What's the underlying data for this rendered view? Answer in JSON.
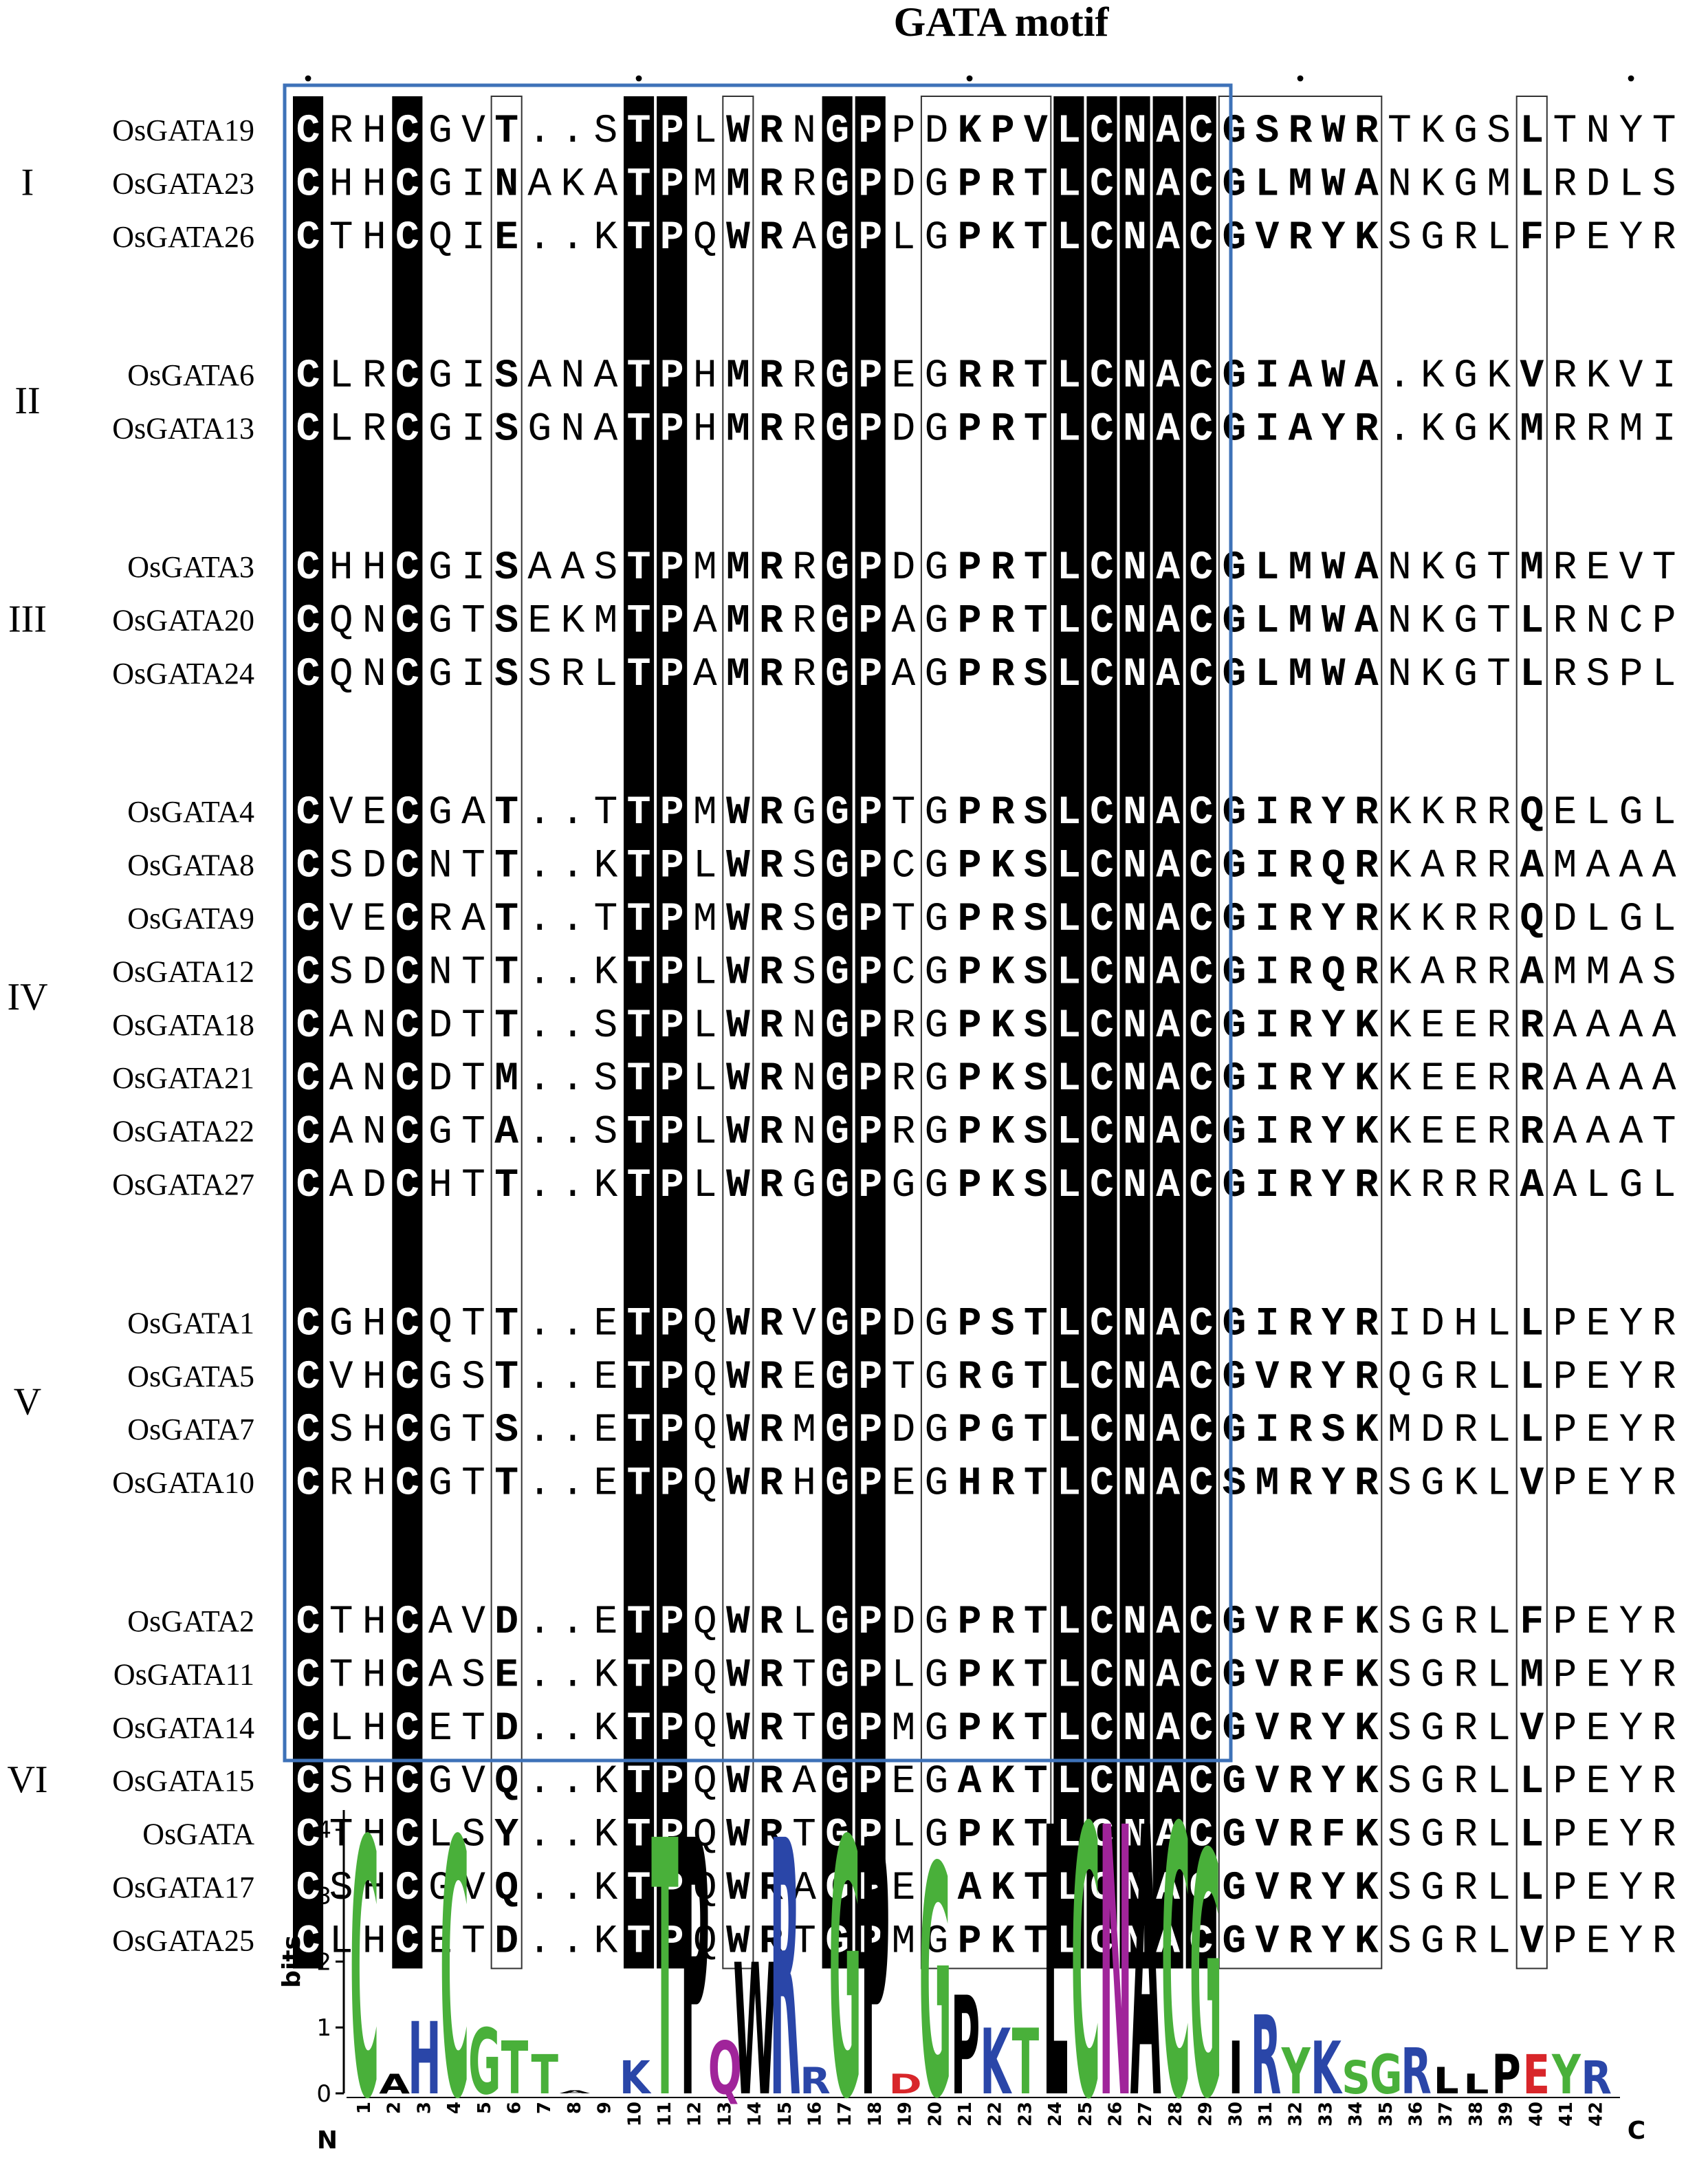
{
  "title": "GATA motif",
  "groups": [
    {
      "label": "I",
      "rows": [
        {
          "name": "OsGATA19",
          "sequence": "CRHCGVT..STPLWRNGPPDKPVLCNACGSRWRTKGSLTNYT"
        },
        {
          "name": "OsGATA23",
          "sequence": "CHHCGINAKATPMMRRGPDGPRTLCNACGLMWANKGMLRDLS"
        },
        {
          "name": "OsGATA26",
          "sequence": "CTHCQIE..KTPQWRAGPLGPKTLCNACGVRYKSGRLFPEYR"
        }
      ]
    },
    {
      "label": "II",
      "rows": [
        {
          "name": "OsGATA6",
          "sequence": "CLRCGISANATPHMRRGPEGRRTLCNACGIAWA.KGKVRKVI"
        },
        {
          "name": "OsGATA13",
          "sequence": "CLRCGISGNATPHMRRGPDGPRTLCNACGIAYR.KGKMRRMI"
        }
      ]
    },
    {
      "label": "III",
      "rows": [
        {
          "name": "OsGATA3",
          "sequence": "CHHCGISAASTPMMRRGPDGPRTLCNACGLMWANKGTMREVT"
        },
        {
          "name": "OsGATA20",
          "sequence": "CQNCGTSEKMTPAMRRGPAGPRTLCNACGLMWANKGTLRNCP"
        },
        {
          "name": "OsGATA24",
          "sequence": "CQNCGISSRLTPAMRRGPAGPRSLCNACGLMWANKGTLRSPL"
        }
      ]
    },
    {
      "label": "IV",
      "rows": [
        {
          "name": "OsGATA4",
          "sequence": "CVECGAT..TTPMWRGGPTGPRSLCNACGIRYRKKRRQELGL"
        },
        {
          "name": "OsGATA8",
          "sequence": "CSDCNTT..KTPLWRSGPCGPKSLCNACGIRQRKARRAMAAA"
        },
        {
          "name": "OsGATA9",
          "sequence": "CVECRAT..TTPMWRSGPTGPRSLCNACGIRYRKKRRQDLGL"
        },
        {
          "name": "OsGATA12",
          "sequence": "CSDCNTT..KTPLWRSGPCGPKSLCNACGIRQRKARRAMMAS"
        },
        {
          "name": "OsGATA18",
          "sequence": "CANCDTT..STPLWRNGPRGPKSLCNACGIRYKKEERRAAAA"
        },
        {
          "name": "OsGATA21",
          "sequence": "CANCDTM..STPLWRNGPRGPKSLCNACGIRYKKEERRAAAA"
        },
        {
          "name": "OsGATA22",
          "sequence": "CANCGTA..STPLWRNGPRGPKSLCNACGIRYKKEERRAAAT"
        },
        {
          "name": "OsGATA27",
          "sequence": "CADCHTT..KTPLWRGGPGGPKSLCNACGIRYRKRRRAALGL"
        }
      ]
    },
    {
      "label": "V",
      "rows": [
        {
          "name": "OsGATA1",
          "sequence": "CGHCQTT..ETPQWRVGPDGPSTLCNACGIRYRIDHLLPEYR"
        },
        {
          "name": "OsGATA5",
          "sequence": "CVHCGST..ETPQWREGPTGRGTLCNACGVRYRQGRLLPEYR"
        },
        {
          "name": "OsGATA7",
          "sequence": "CSHCGTS..ETPQWRMGPDGPGTLCNACGIRSKMDRLLPEYR"
        },
        {
          "name": "OsGATA10",
          "sequence": "CRHCGTT..ETPQWRHGPEGHRTLCNACSMRYRSGKLVPEYR"
        }
      ]
    },
    {
      "label": "VI",
      "rows": [
        {
          "name": "OsGATA2",
          "sequence": "CTHCAVD..ETPQWRLGPDGPRTLCNACGVRFKSGRLFPEYR"
        },
        {
          "name": "OsGATA11",
          "sequence": "CTHCASE..KTPQWRTGPLGPKTLCNACGVRFKSGRLMPEYR"
        },
        {
          "name": "OsGATA14",
          "sequence": "CLHCETD..KTPQWRTGPMGPKTLCNACGVRYKSGRLVPEYR"
        },
        {
          "name": "OsGATA15",
          "sequence": "CSHCGVQ..KTPQWRAGPEGAKTLCNACGVRYKSGRLLPEYR"
        },
        {
          "name": "OsGATA",
          "sequence": "CTHCLSY..KTPQWRTGPLGPKTLCNACGVRFKSGRLLPEYR"
        },
        {
          "name": "OsGATA17",
          "sequence": "CSHCGVQ..KTPQWRAGPEGAKTLCNACGVRYKSGRLLPEYR"
        },
        {
          "name": "OsGATA25",
          "sequence": "CLHCETD..KTPQWRTGPMGPKTLCNACGVRYKSGRLVPEYR"
        }
      ]
    }
  ],
  "logo": {
    "ylabel": "bits",
    "ylim": [
      0,
      4.3
    ],
    "yticks": [
      0,
      1,
      2,
      3,
      4
    ],
    "positions": [
      1,
      2,
      3,
      4,
      5,
      6,
      7,
      8,
      9,
      10,
      11,
      12,
      13,
      14,
      15,
      16,
      17,
      18,
      19,
      20,
      21,
      22,
      23,
      24,
      25,
      26,
      27,
      28,
      29,
      30,
      31,
      32,
      33,
      34,
      35,
      36,
      37,
      38,
      39,
      40,
      41,
      42
    ],
    "letters": [
      "C",
      "A",
      "H",
      "C",
      "G",
      "T",
      "T",
      "A",
      null,
      "K",
      "T",
      "P",
      "Q",
      "W",
      "R",
      "R",
      "G",
      "P",
      "D",
      "G",
      "P",
      "K",
      "T",
      "L",
      "C",
      "N",
      "A",
      "C",
      "G",
      "I",
      "R",
      "Y",
      "K",
      "S",
      "G",
      "R",
      "L",
      "L",
      "P",
      "E",
      "Y",
      "R"
    ],
    "heights": [
      3.9,
      0.3,
      1.1,
      3.9,
      1.0,
      0.8,
      0.6,
      0.05,
      0,
      0.5,
      3.9,
      3.9,
      0.8,
      2.0,
      3.9,
      0.4,
      3.9,
      3.9,
      0.3,
      3.5,
      1.5,
      1.0,
      1.0,
      4.1,
      4.1,
      4.1,
      4.1,
      4.1,
      3.7,
      0.8,
      1.2,
      0.7,
      0.8,
      0.5,
      0.6,
      0.7,
      0.4,
      0.3,
      0.6,
      0.6,
      0.6,
      0.5
    ],
    "n_label": "N",
    "c_label": "C",
    "letter_colors": {
      "C": "#49b03a",
      "G": "#49b03a",
      "T": "#49b03a",
      "S": "#49b03a",
      "Y": "#49b03a",
      "H": "#2a46a8",
      "K": "#2a46a8",
      "R": "#2a46a8",
      "Q": "#a0249a",
      "N": "#a0249a",
      "D": "#d8262a",
      "E": "#d8262a",
      "A": "#000000",
      "W": "#000000",
      "P": "#000000",
      "L": "#000000",
      "M": "#000000",
      "I": "#000000",
      "V": "#000000",
      "F": "#000000"
    }
  }
}
